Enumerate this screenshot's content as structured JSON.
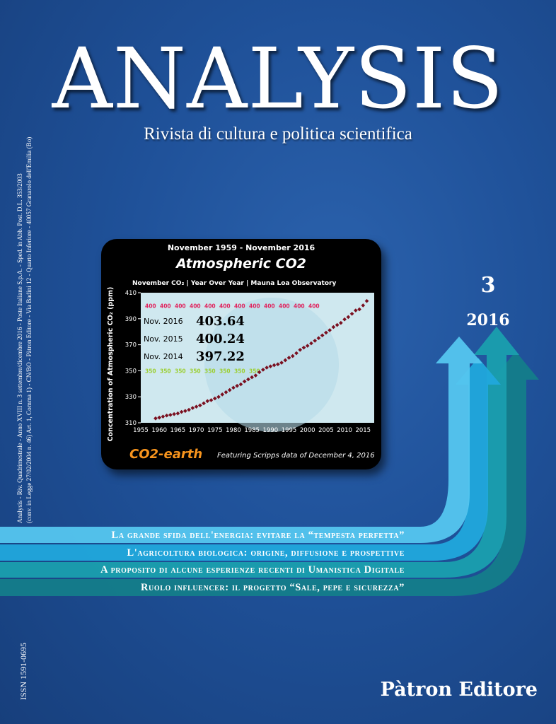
{
  "cover": {
    "masthead": "ANALYSIS",
    "subtitle": "Rivista di cultura e politica scientifica",
    "spine_line1": "Analysis - Riv. Quadrimestrale - Anno XVIII n. 3 settembre/dicembre 2016 - Poste Italiane S.p.A. - Sped. in Abb. Post. D.L. 353/2003",
    "spine_line2": "(conv. in Legge 27/02/2004 n. 46) Art. 1, Comma 1) - CN/BO - Pàtron Editore - Via Badini 12 - Quarto Inferiore - 40057 Granarolo dell'Emilia (Bo)",
    "issn": "ISSN 1591-0695",
    "issue_number": "3",
    "issue_year": "2016",
    "publisher": "Pàtron Editore",
    "background_color": "#1f5199"
  },
  "headlines": [
    {
      "text": "La grande sfida dell'energia: evitare la “tempesta perfetta”",
      "color": "#55c6ef"
    },
    {
      "text": "L'agricoltura biologica: origine, diffusione e prospettive",
      "color": "#21a8dc"
    },
    {
      "text": "A proposito di alcune esperienze recenti di Umanistica Digitale",
      "color": "#1a9fae"
    },
    {
      "text": "Ruolo influencer: il progetto “Sale, pepe e sicurezza”",
      "color": "#147d8a"
    }
  ],
  "chart_data": {
    "type": "scatter",
    "supertitle": "November 1959 - November 2016",
    "title": "Atmospheric CO2",
    "subtitle": "November CO₂ | Year Over Year | Mauna Loa Observatory",
    "ylabel": "Concentration of Atmospheric CO₂ (ppm)",
    "xlabel": "",
    "xlim": [
      1955,
      2018
    ],
    "ylim": [
      310,
      410
    ],
    "xticks": [
      1955,
      1960,
      1965,
      1970,
      1975,
      1980,
      1985,
      1990,
      1995,
      2000,
      2005,
      2010,
      2015
    ],
    "yticks": [
      310,
      330,
      350,
      370,
      390,
      410
    ],
    "reference_lines": [
      {
        "value": 400,
        "label": "400",
        "color": "#e0245e"
      },
      {
        "value": 350,
        "label": "350",
        "color": "#9ccf31"
      }
    ],
    "readings": [
      {
        "label": "Nov. 2016",
        "value": "403.64"
      },
      {
        "label": "Nov. 2015",
        "value": "400.24"
      },
      {
        "label": "Nov. 2014",
        "value": "397.22"
      }
    ],
    "series": [
      {
        "x": [
          1959,
          1960,
          1961,
          1962,
          1963,
          1964,
          1965,
          1966,
          1967,
          1968,
          1969,
          1970,
          1971,
          1972,
          1973,
          1974,
          1975,
          1976,
          1977,
          1978,
          1979,
          1980,
          1981,
          1982,
          1983,
          1984,
          1985,
          1986,
          1987,
          1988,
          1989,
          1990,
          1991,
          1992,
          1993,
          1994,
          1995,
          1996,
          1997,
          1998,
          1999,
          2000,
          2001,
          2002,
          2003,
          2004,
          2005,
          2006,
          2007,
          2008,
          2009,
          2010,
          2011,
          2012,
          2013,
          2014,
          2015,
          2016
        ],
        "y": [
          313.4,
          314.0,
          314.8,
          315.6,
          316.1,
          316.7,
          317.2,
          318.4,
          319.1,
          320.0,
          321.4,
          322.4,
          323.4,
          325.0,
          326.7,
          327.4,
          328.7,
          329.9,
          331.8,
          333.5,
          335.2,
          337.0,
          338.4,
          339.6,
          341.8,
          343.4,
          345.0,
          346.4,
          348.9,
          350.8,
          352.4,
          353.4,
          354.3,
          355.0,
          356.2,
          358.1,
          360.0,
          361.3,
          363.5,
          366.1,
          367.8,
          369.2,
          371.1,
          373.1,
          375.1,
          377.2,
          379.3,
          381.2,
          383.6,
          385.2,
          386.8,
          389.5,
          391.3,
          393.8,
          396.4,
          397.22,
          400.24,
          403.64
        ]
      }
    ],
    "brand": "CO2-earth",
    "footer": "Featuring Scripps data of December 4, 2016",
    "colors": {
      "background": "#cfe8ef",
      "points": "#7a1020",
      "panel": "#000000"
    }
  }
}
